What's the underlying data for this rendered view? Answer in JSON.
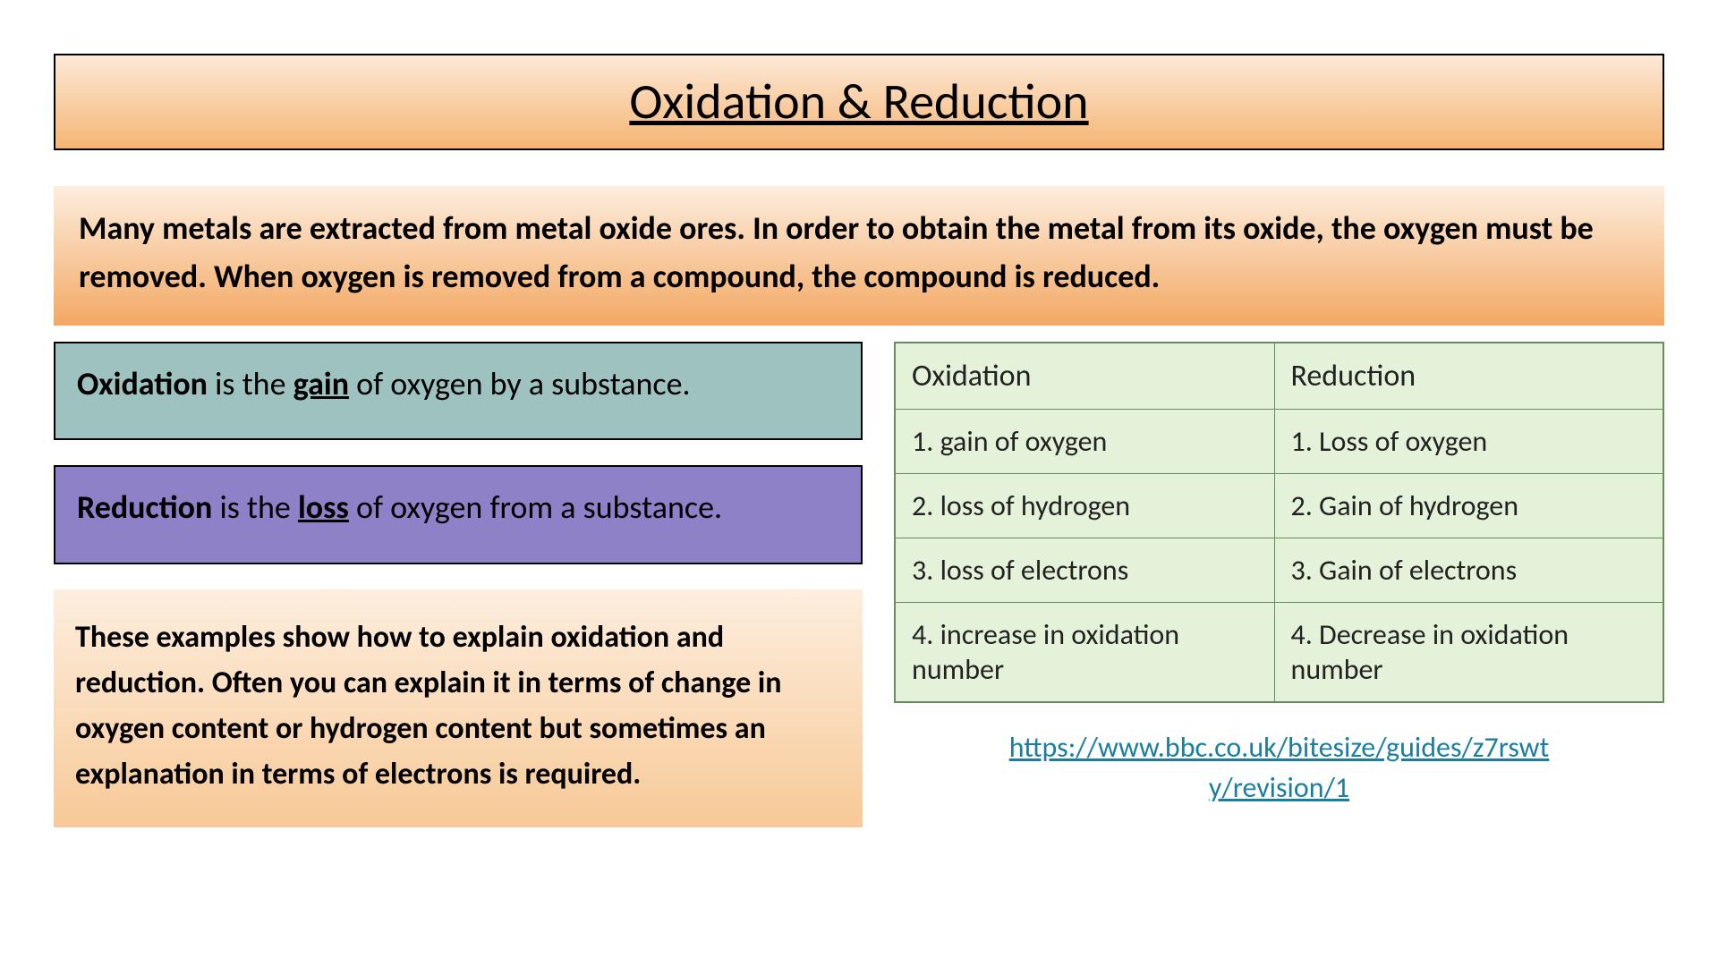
{
  "title": "Oxidation & Reduction",
  "intro": "Many metals are extracted from metal oxide ores. In order to obtain the metal from its oxide, the oxygen must be removed. When oxygen is removed from a compound, the compound is reduced.",
  "oxidation_def": {
    "strong1": "Oxidation",
    "mid1": " is the ",
    "strong2": "gain",
    "mid2": " of oxygen by a substance."
  },
  "reduction_def": {
    "strong1": "Reduction",
    "mid1": " is the ",
    "strong2": "loss",
    "mid2": " of oxygen from a substance."
  },
  "examples_text": "These examples show how to explain oxidation and reduction. Often you can explain it in terms of change in oxygen content or hydrogen content but sometimes an explanation in terms of electrons is required.",
  "table": {
    "header": {
      "c1": "Oxidation",
      "c2": "Reduction"
    },
    "rows": [
      {
        "c1": "1. gain of oxygen",
        "c2": "1. Loss of oxygen"
      },
      {
        "c1": "2. loss of hydrogen",
        "c2": "2. Gain of hydrogen"
      },
      {
        "c1": "3. loss of electrons",
        "c2": "3. Gain of electrons"
      },
      {
        "c1": "4. increase in oxidation number",
        "c2": "4. Decrease in oxidation number"
      }
    ]
  },
  "link": {
    "text1": "https://www.bbc.co.uk/bitesize/guides/z7rswt",
    "text2": "y/revision/1"
  },
  "colors": {
    "title_grad_top": "#fce9d7",
    "title_grad_bot": "#f5b574",
    "intro_grad_top": "#fdeede",
    "intro_grad_bot": "#f3a863",
    "teal_bg": "#9dc2c0",
    "purple_bg": "#8e81c7",
    "examples_grad_top": "#fdeede",
    "examples_grad_bot": "#f7c997",
    "table_bg": "#e5f2da",
    "table_border": "#6a8a62",
    "link_color": "#1b7ea0"
  }
}
